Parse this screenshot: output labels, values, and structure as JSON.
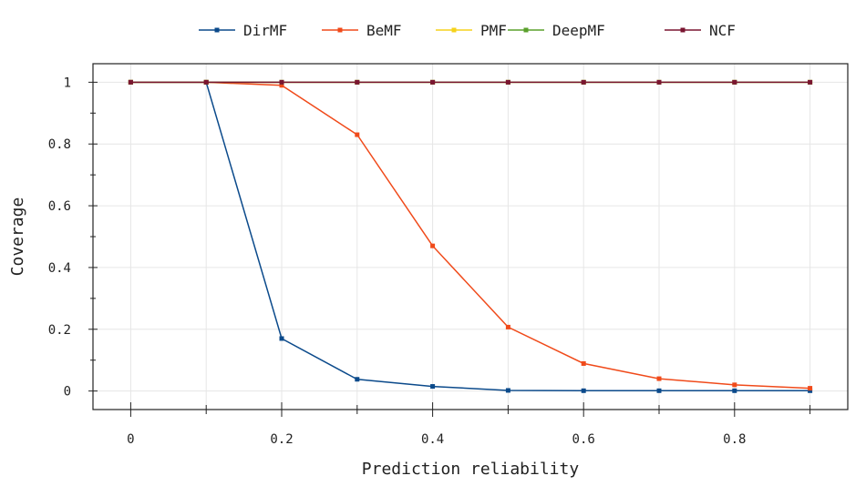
{
  "chart_data": {
    "type": "line",
    "title": "",
    "xlabel": "Prediction reliability",
    "ylabel": "Coverage",
    "xlim": [
      -0.05,
      0.95
    ],
    "ylim": [
      -0.06,
      1.06
    ],
    "x": [
      0,
      0.1,
      0.2,
      0.3,
      0.4,
      0.5,
      0.6,
      0.7,
      0.8,
      0.9
    ],
    "xticks": [
      0,
      0.2,
      0.4,
      0.6,
      0.8
    ],
    "xtick_labels": [
      "0",
      "0.2",
      "0.4",
      "0.6",
      "0.8"
    ],
    "yticks": [
      0,
      0.2,
      0.4,
      0.6,
      0.8,
      1
    ],
    "ytick_labels": [
      "0",
      "0.2",
      "0.4",
      "0.6",
      "0.8",
      "1"
    ],
    "grid": true,
    "legend_position": "top-center",
    "series": [
      {
        "name": "DirMF",
        "color": "#0b4a8b",
        "values": [
          1,
          1,
          0.17,
          0.038,
          0.015,
          0.002,
          0.001,
          0.001,
          0.001,
          0.001
        ]
      },
      {
        "name": "BeMF",
        "color": "#f04a1a",
        "values": [
          1,
          1,
          0.99,
          0.83,
          0.47,
          0.207,
          0.089,
          0.04,
          0.02,
          0.009
        ]
      },
      {
        "name": "PMF",
        "color": "#f5d21b",
        "values": [
          1,
          1,
          1,
          1,
          1,
          1,
          1,
          1,
          1,
          1
        ]
      },
      {
        "name": "DeepMF",
        "color": "#5aa02c",
        "values": [
          1,
          1,
          1,
          1,
          1,
          1,
          1,
          1,
          1,
          1
        ]
      },
      {
        "name": "NCF",
        "color": "#7a1530",
        "values": [
          1,
          1,
          1,
          1,
          1,
          1,
          1,
          1,
          1,
          1
        ]
      }
    ]
  }
}
